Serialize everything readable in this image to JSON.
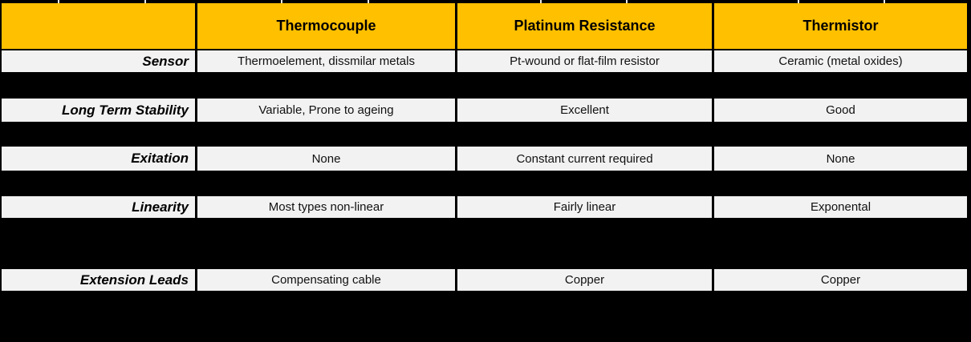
{
  "table": {
    "columns": [
      "",
      "Thermocouple",
      "Platinum Resistance",
      "Thermistor"
    ],
    "rows": [
      {
        "label": "Sensor",
        "values": [
          "Thermoelement, dissmilar metals",
          "Pt-wound or flat-film resistor",
          "Ceramic (metal oxides)"
        ]
      },
      {
        "label": "Long Term Stability",
        "values": [
          "Variable, Prone to ageing",
          "Excellent",
          "Good"
        ]
      },
      {
        "label": "Exitation",
        "values": [
          "None",
          "Constant current required",
          "None"
        ]
      },
      {
        "label": "Linearity",
        "values": [
          "Most types non-linear",
          "Fairly linear",
          "Exponental"
        ]
      },
      {
        "label": "Extension Leads",
        "values": [
          "Compensating cable",
          "Copper",
          "Copper"
        ]
      }
    ]
  },
  "colors": {
    "header_bg": "#FFC000",
    "row_bg": "#F2F2F2",
    "gap_bg": "#000000",
    "text": "#000000"
  },
  "decor": {
    "top_tick_positions": [
      72,
      180,
      350,
      458,
      673,
      780,
      994,
      1101
    ]
  }
}
